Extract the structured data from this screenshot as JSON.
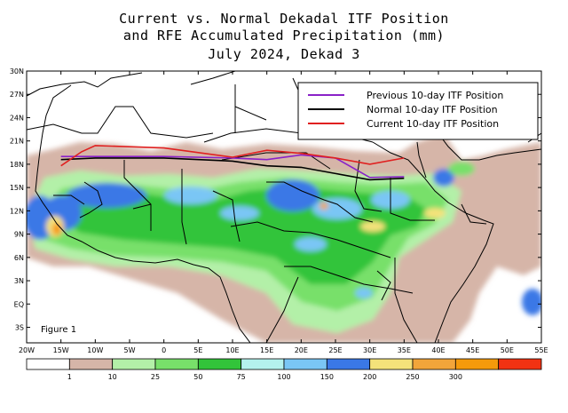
{
  "title": {
    "line1": "Current vs. Normal Dekadal ITF Position",
    "line2": "and RFE Accumulated Precipitation (mm)",
    "line3": "July 2024, Dekad 3"
  },
  "figure_label": "Figure 1",
  "axes": {
    "lat_labels": [
      "30N",
      "27N",
      "24N",
      "21N",
      "18N",
      "15N",
      "12N",
      "9N",
      "6N",
      "3N",
      "EQ",
      "3S"
    ],
    "lon_labels": [
      "20W",
      "15W",
      "10W",
      "5W",
      "0",
      "5E",
      "10E",
      "15E",
      "20E",
      "25E",
      "30E",
      "35E",
      "40E",
      "45E",
      "50E",
      "55E"
    ]
  },
  "legend": {
    "entries": [
      {
        "label": "Previous 10-day ITF Position",
        "color": "#8a22c8"
      },
      {
        "label": "Normal 10-day ITF Position",
        "color": "#000000"
      },
      {
        "label": "Current 10-day ITF Position",
        "color": "#e02020"
      }
    ]
  },
  "colorbar": {
    "colors": [
      "#ffffff",
      "#d6b5a8",
      "#b3f0a8",
      "#78e06a",
      "#32c43a",
      "#b4f2ee",
      "#7ac6f5",
      "#3a78e6",
      "#f4e27a",
      "#f2a53a",
      "#f59a0b",
      "#f23212"
    ],
    "ticks": [
      "1",
      "10",
      "25",
      "50",
      "75",
      "100",
      "150",
      "200",
      "250",
      "300"
    ]
  },
  "itf_lines": {
    "previous": [
      [
        -15,
        19.0
      ],
      [
        -10,
        19.0
      ],
      [
        0,
        19.0
      ],
      [
        10,
        18.8
      ],
      [
        15,
        18.6
      ],
      [
        20,
        19.2
      ],
      [
        25,
        18.8
      ],
      [
        30,
        16.3
      ],
      [
        35,
        16.4
      ]
    ],
    "normal": [
      [
        -15,
        18.6
      ],
      [
        -10,
        18.8
      ],
      [
        0,
        18.8
      ],
      [
        10,
        18.4
      ],
      [
        15,
        17.8
      ],
      [
        20,
        17.6
      ],
      [
        25,
        16.8
      ],
      [
        30,
        16.0
      ],
      [
        35,
        16.2
      ]
    ],
    "current": [
      [
        -15,
        17.8
      ],
      [
        -12,
        19.6
      ],
      [
        -10,
        20.4
      ],
      [
        0,
        20.1
      ],
      [
        10,
        18.9
      ],
      [
        15,
        19.8
      ],
      [
        20,
        19.4
      ],
      [
        25,
        18.8
      ],
      [
        30,
        18.0
      ],
      [
        35,
        18.8
      ]
    ]
  }
}
